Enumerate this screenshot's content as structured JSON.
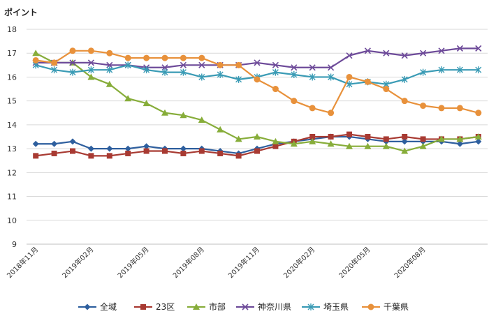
{
  "chart_data": {
    "type": "line",
    "title": "",
    "ylabel": "ポイント",
    "xlabel": "",
    "ylim": [
      9,
      18
    ],
    "yticks": [
      9,
      10,
      11,
      12,
      13,
      14,
      15,
      16,
      17,
      18
    ],
    "grid": true,
    "legend": "bottom",
    "categories": [
      "2018年11月",
      "2018年12月",
      "2019年01月",
      "2019年02月",
      "2019年03月",
      "2019年04月",
      "2019年05月",
      "2019年06月",
      "2019年07月",
      "2019年08月",
      "2019年09月",
      "2019年10月",
      "2019年11月",
      "2019年12月",
      "2020年01月",
      "2020年02月",
      "2020年03月",
      "2020年04月",
      "2020年05月",
      "2020年06月",
      "2020年07月",
      "2020年08月",
      "2020年09月",
      "2020年10月",
      "2020年11月"
    ],
    "tick_labels": [
      {
        "index": 0,
        "label": "2018年11月"
      },
      {
        "index": 3,
        "label": "2019年02月"
      },
      {
        "index": 6,
        "label": "2019年05月"
      },
      {
        "index": 9,
        "label": "2019年08月"
      },
      {
        "index": 12,
        "label": "2019年11月"
      },
      {
        "index": 15,
        "label": "2020年02月"
      },
      {
        "index": 18,
        "label": "2020年05月"
      },
      {
        "index": 21,
        "label": "2020年08月"
      }
    ],
    "series": [
      {
        "name": "全域",
        "color": "#2e5f9e",
        "marker": "diamond",
        "values": [
          13.2,
          13.2,
          13.3,
          13.0,
          13.0,
          13.0,
          13.1,
          13.0,
          13.0,
          13.0,
          12.9,
          12.8,
          13.0,
          13.2,
          13.3,
          13.4,
          13.5,
          13.5,
          13.4,
          13.3,
          13.3,
          13.3,
          13.3,
          13.2,
          13.3
        ]
      },
      {
        "name": "23区",
        "color": "#a83a32",
        "marker": "square",
        "values": [
          12.7,
          12.8,
          12.9,
          12.7,
          12.7,
          12.8,
          12.9,
          12.9,
          12.8,
          12.9,
          12.8,
          12.7,
          12.9,
          13.1,
          13.3,
          13.5,
          13.5,
          13.6,
          13.5,
          13.4,
          13.5,
          13.4,
          13.4,
          13.4,
          13.5
        ]
      },
      {
        "name": "市部",
        "color": "#87ad3a",
        "marker": "triangle",
        "values": [
          17.0,
          16.6,
          16.6,
          16.0,
          15.7,
          15.1,
          14.9,
          14.5,
          14.4,
          14.2,
          13.8,
          13.4,
          13.5,
          13.3,
          13.2,
          13.3,
          13.2,
          13.1,
          13.1,
          13.1,
          12.9,
          13.1,
          13.4,
          13.4,
          13.5
        ]
      },
      {
        "name": "神奈川県",
        "color": "#6d4a99",
        "marker": "x",
        "values": [
          16.6,
          16.6,
          16.6,
          16.6,
          16.5,
          16.5,
          16.4,
          16.4,
          16.5,
          16.5,
          16.5,
          16.5,
          16.6,
          16.5,
          16.4,
          16.4,
          16.4,
          16.9,
          17.1,
          17.0,
          16.9,
          17.0,
          17.1,
          17.2,
          17.2
        ]
      },
      {
        "name": "埼玉県",
        "color": "#3a9bb5",
        "marker": "star",
        "values": [
          16.5,
          16.3,
          16.2,
          16.3,
          16.3,
          16.5,
          16.3,
          16.2,
          16.2,
          16.0,
          16.1,
          15.9,
          16.0,
          16.2,
          16.1,
          16.0,
          16.0,
          15.7,
          15.8,
          15.7,
          15.9,
          16.2,
          16.3,
          16.3,
          16.3
        ]
      },
      {
        "name": "千葉県",
        "color": "#e8913b",
        "marker": "circle",
        "values": [
          16.7,
          16.6,
          17.1,
          17.1,
          17.0,
          16.8,
          16.8,
          16.8,
          16.8,
          16.8,
          16.5,
          16.5,
          15.9,
          15.5,
          15.0,
          14.7,
          14.5,
          16.0,
          15.8,
          15.5,
          15.0,
          14.8,
          14.7,
          14.7,
          14.5
        ]
      }
    ]
  }
}
